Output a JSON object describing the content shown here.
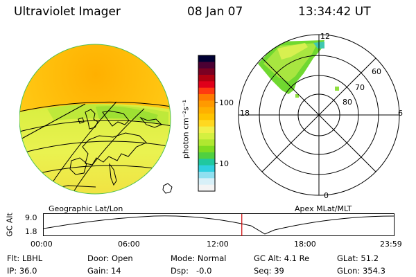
{
  "header": {
    "instrument": "Ultraviolet Imager",
    "date": "08 Jan 07",
    "time": "13:34:42 UT"
  },
  "colorbar": {
    "unit_label": "photon cm⁻²s⁻¹",
    "ticks": [
      "100",
      "10"
    ],
    "colors": [
      "#000033",
      "#4b0033",
      "#7a0022",
      "#b00010",
      "#e0001a",
      "#ff3a10",
      "#ff7a00",
      "#ff9a00",
      "#ffb000",
      "#ffc400",
      "#ffd820",
      "#f0f04a",
      "#d4f040",
      "#b0e830",
      "#80dc20",
      "#50d040",
      "#20c8a0",
      "#30d0e0",
      "#90e0f0",
      "#d8f0f8",
      "#f4f4f4"
    ]
  },
  "left_panel": {
    "label": "Geographic Lat/Lon"
  },
  "right_panel": {
    "label": "Apex MLat/MLT",
    "mlt_labels": {
      "top": "12",
      "left": "18",
      "right": "6",
      "bottom": "0"
    },
    "lat_labels": [
      "60",
      "70",
      "80"
    ]
  },
  "altitude_plot": {
    "ylabel": "GC Alt",
    "yticks": [
      "9.0",
      "1.8"
    ],
    "xticks": [
      "00:00",
      "06:00",
      "12:00",
      "18:00",
      "23:59"
    ],
    "current_time_marker_hours": 13.58,
    "marker_color": "#cc0000"
  },
  "status": {
    "row1": {
      "filter": "Flt: LBHL",
      "door": "Door: Open",
      "mode": "Mode: Normal",
      "gc_alt": "GC Alt: 4.1 Re",
      "glat": "GLat: 51.2"
    },
    "row2": {
      "ip": "IP: 36.0",
      "gain": "Gain: 14",
      "dsp": "Dsp:   -0.0",
      "seq": "Seq: 39",
      "glon": "GLon: 354.3"
    }
  }
}
